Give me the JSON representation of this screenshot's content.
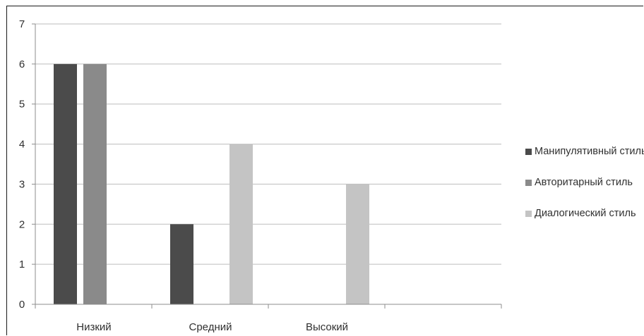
{
  "chart_data": {
    "type": "bar",
    "categories": [
      "Низкий",
      "Средний",
      "Высокий"
    ],
    "series": [
      {
        "name": "Манипулятивный стиль",
        "values": [
          6,
          2,
          0
        ],
        "color": "#4b4b4b"
      },
      {
        "name": "Авторитарный стиль",
        "values": [
          6,
          0,
          0
        ],
        "color": "#8a8a8a"
      },
      {
        "name": "Диалогический стиль",
        "values": [
          0,
          4,
          3
        ],
        "color": "#c4c4c4"
      }
    ],
    "yticks": [
      "0",
      "1",
      "2",
      "3",
      "4",
      "5",
      "6",
      "7"
    ],
    "ylim": [
      0,
      7
    ],
    "grid": true,
    "legend_position": "right",
    "title": "",
    "xlabel": "",
    "ylabel": ""
  }
}
